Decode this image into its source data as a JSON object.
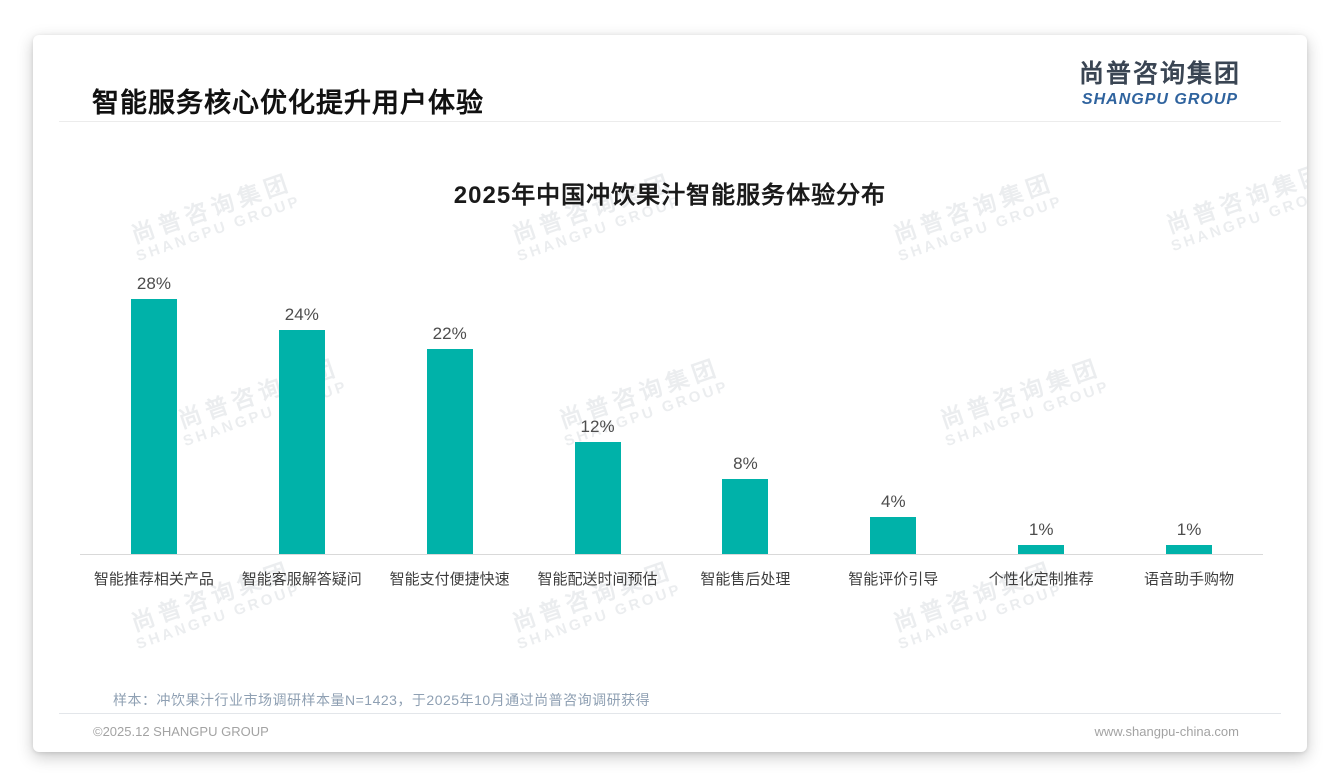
{
  "page": {
    "slide_title": "智能服务核心优化提升用户体验",
    "note": "样本：冲饮果汁行业市场调研样本量N=1423，于2025年10月通过尚普咨询调研获得",
    "footer_left": "©2025.12 SHANGPU GROUP",
    "footer_right": "www.shangpu-china.com"
  },
  "logo": {
    "cn": "尚普咨询集团",
    "en": "SHANGPU GROUP"
  },
  "watermark": {
    "line1": "尚普咨询集团",
    "line2": "SHANGPU GROUP"
  },
  "colors": {
    "bar": "#00b2a9",
    "logo_dark": "#3a4553",
    "logo_blue": "#2f639e",
    "note_text": "#8fa0b3",
    "axis_line": "#d9d9d9"
  },
  "chart_data": {
    "type": "bar",
    "title": "2025年中国冲饮果汁智能服务体验分布",
    "categories": [
      "智能推荐相关产品",
      "智能客服解答疑问",
      "智能支付便捷快速",
      "智能配送时间预估",
      "智能售后处理",
      "智能评价引导",
      "个性化定制推荐",
      "语音助手购物"
    ],
    "values": [
      28,
      24,
      22,
      12,
      8,
      4,
      1,
      1
    ],
    "unit": "%",
    "xlabel": "",
    "ylabel": "",
    "ylim": [
      0,
      30
    ],
    "grid": false,
    "legend": "none",
    "data_labels": true,
    "bar_color": "#00b2a9"
  }
}
